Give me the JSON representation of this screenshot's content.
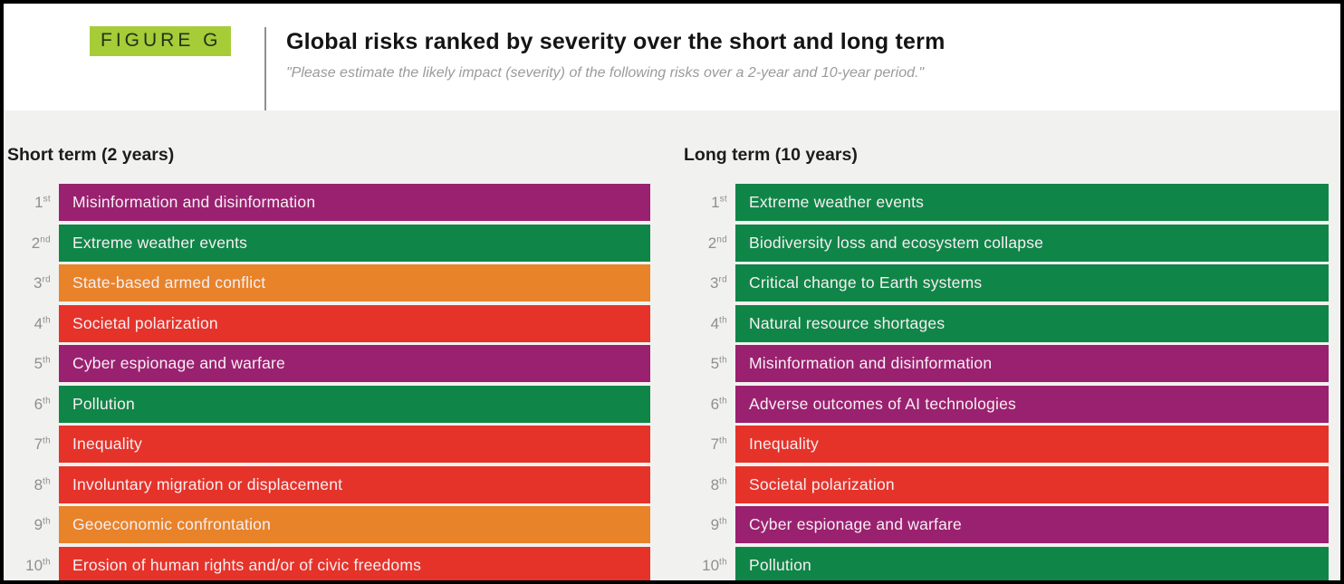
{
  "header": {
    "figure_label": "FIGURE G"
  },
  "colors": {
    "figure_tag_bg": "#A6CC38",
    "body_bg": "#F1F1EF",
    "rank_text": "#8F8F8F",
    "bar_text": "#F6EFF2"
  },
  "chart_data": {
    "type": "bar",
    "title": "Global risks ranked by severity over the short and long term",
    "subtitle": "\"Please estimate the likely impact (severity) of the following risks over a 2-year and 10-year period.\"",
    "category_colors": {
      "environmental": "#108548",
      "geopolitical": "#E8832A",
      "societal": "#E5332A",
      "technological": "#9A2170"
    },
    "panels": [
      {
        "label": "Short term (2 years)",
        "ranks": [
          {
            "rank": 1,
            "ordinal": "1st",
            "risk": "Misinformation and disinformation",
            "category": "technological"
          },
          {
            "rank": 2,
            "ordinal": "2nd",
            "risk": "Extreme weather events",
            "category": "environmental"
          },
          {
            "rank": 3,
            "ordinal": "3rd",
            "risk": "State-based armed conflict",
            "category": "geopolitical"
          },
          {
            "rank": 4,
            "ordinal": "4th",
            "risk": "Societal polarization",
            "category": "societal"
          },
          {
            "rank": 5,
            "ordinal": "5th",
            "risk": "Cyber espionage and warfare",
            "category": "technological"
          },
          {
            "rank": 6,
            "ordinal": "6th",
            "risk": "Pollution",
            "category": "environmental"
          },
          {
            "rank": 7,
            "ordinal": "7th",
            "risk": "Inequality",
            "category": "societal"
          },
          {
            "rank": 8,
            "ordinal": "8th",
            "risk": "Involuntary migration or displacement",
            "category": "societal"
          },
          {
            "rank": 9,
            "ordinal": "9th",
            "risk": "Geoeconomic confrontation",
            "category": "geopolitical"
          },
          {
            "rank": 10,
            "ordinal": "10th",
            "risk": "Erosion of human rights and/or of civic freedoms",
            "category": "societal"
          }
        ]
      },
      {
        "label": "Long term (10 years)",
        "ranks": [
          {
            "rank": 1,
            "ordinal": "1st",
            "risk": "Extreme weather events",
            "category": "environmental"
          },
          {
            "rank": 2,
            "ordinal": "2nd",
            "risk": "Biodiversity loss and ecosystem collapse",
            "category": "environmental"
          },
          {
            "rank": 3,
            "ordinal": "3rd",
            "risk": "Critical change to Earth systems",
            "category": "environmental"
          },
          {
            "rank": 4,
            "ordinal": "4th",
            "risk": "Natural resource shortages",
            "category": "environmental"
          },
          {
            "rank": 5,
            "ordinal": "5th",
            "risk": "Misinformation and disinformation",
            "category": "technological"
          },
          {
            "rank": 6,
            "ordinal": "6th",
            "risk": "Adverse outcomes of AI technologies",
            "category": "technological"
          },
          {
            "rank": 7,
            "ordinal": "7th",
            "risk": "Inequality",
            "category": "societal"
          },
          {
            "rank": 8,
            "ordinal": "8th",
            "risk": "Societal polarization",
            "category": "societal"
          },
          {
            "rank": 9,
            "ordinal": "9th",
            "risk": "Cyber espionage and warfare",
            "category": "technological"
          },
          {
            "rank": 10,
            "ordinal": "10th",
            "risk": "Pollution",
            "category": "environmental"
          }
        ]
      }
    ]
  }
}
